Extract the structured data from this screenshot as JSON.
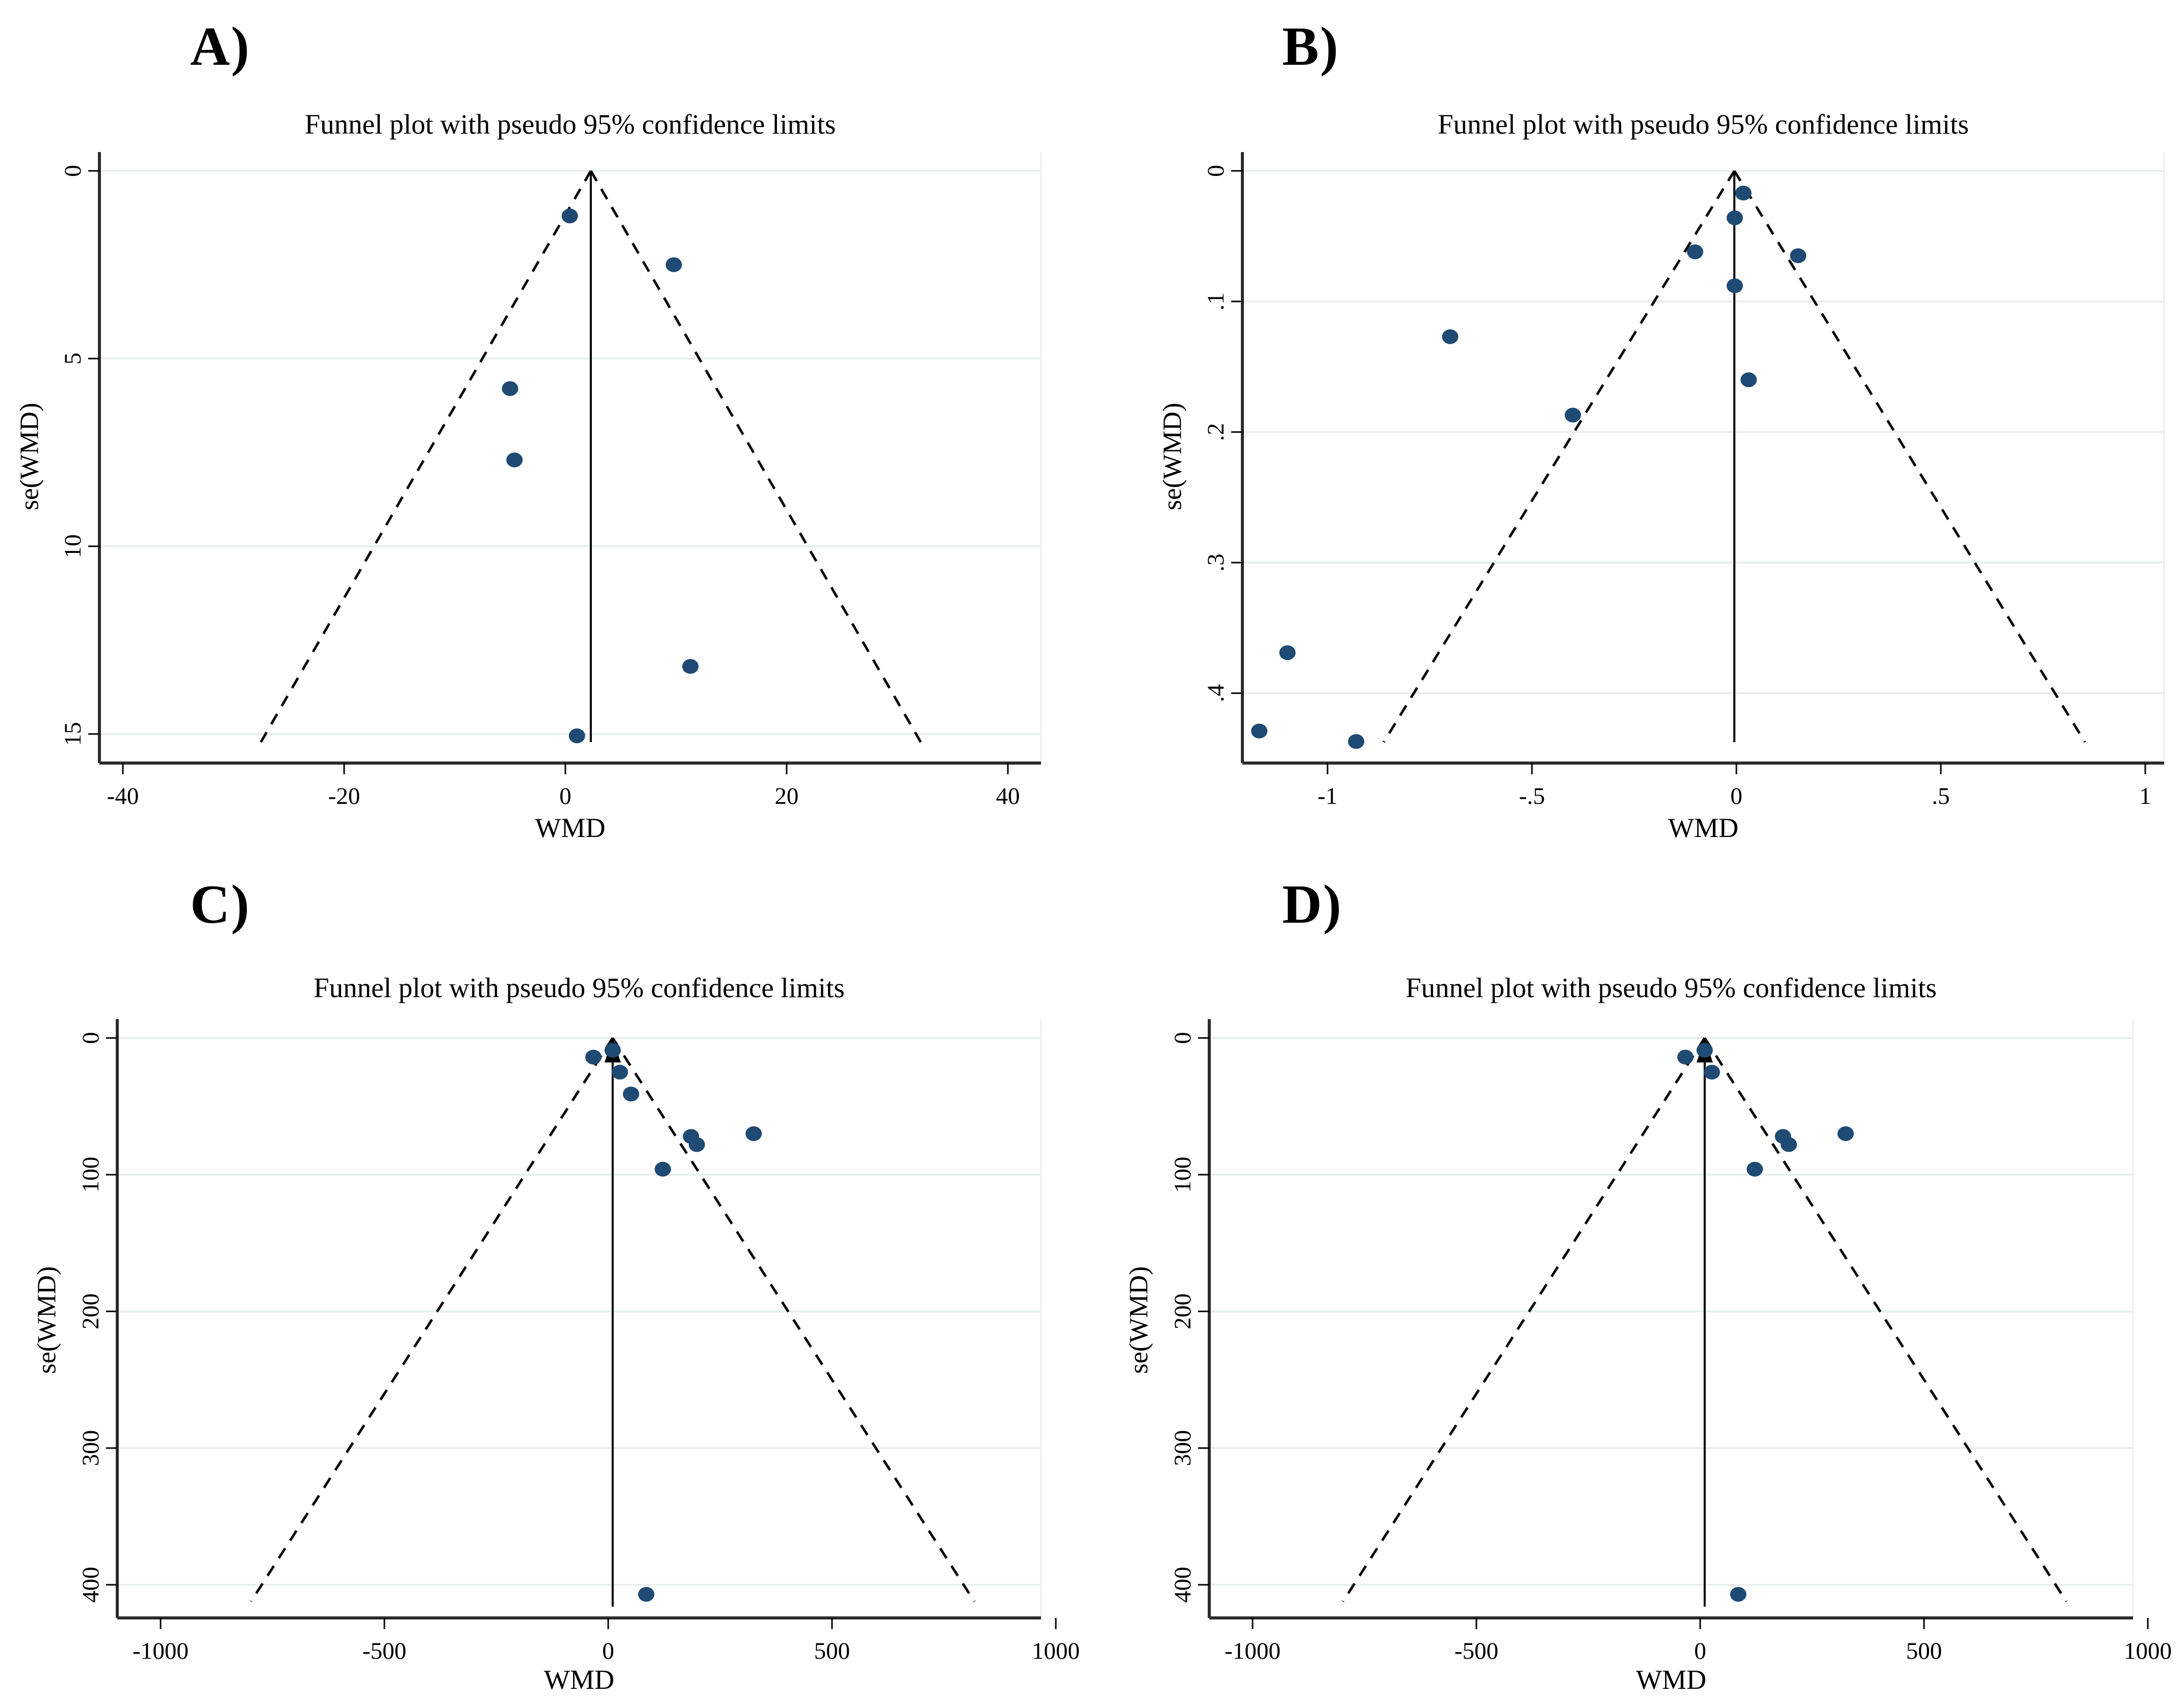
{
  "figure": {
    "background": "#ffffff",
    "description": "Four funnel plots with pseudo 95% confidence limits"
  },
  "colors": {
    "point": "#1e4a73",
    "grid": "#eaeeee",
    "axis": "#2b2b2b",
    "tick": "#000000",
    "funnel_dash": "#0a0a0a",
    "pooled_line": "#000000",
    "plot_edge": "#eeeeee"
  },
  "chart_data": [
    {
      "type": "scatter",
      "letter": "A)",
      "title": "Funnel plot with pseudo 95% confidence limits",
      "xlabel": "WMD",
      "ylabel": "se(WMD)",
      "x_tick_values": [
        -40,
        -20,
        0,
        20,
        40
      ],
      "x_tick_labels": [
        "-40",
        "-20",
        "0",
        "20",
        "40"
      ],
      "y_tick_values": [
        0,
        5,
        10,
        15
      ],
      "y_tick_labels": [
        "0",
        "5",
        "10",
        "15"
      ],
      "xlim": [
        -42,
        43
      ],
      "ylim": [
        0,
        15.8
      ],
      "y_inverted": true,
      "grid": true,
      "pooled_estimate_x": 2.3,
      "funnel_apex_x": 2.3,
      "funnel_ci_multiplier": 1.96,
      "arrow_on_pooled_line": false,
      "points": [
        {
          "wmd": 0.4,
          "se": 1.2
        },
        {
          "wmd": 9.8,
          "se": 2.5
        },
        {
          "wmd": -5.0,
          "se": 5.8
        },
        {
          "wmd": -4.6,
          "se": 7.7
        },
        {
          "wmd": 11.3,
          "se": 13.2
        },
        {
          "wmd": 1.05,
          "se": 15.05
        }
      ]
    },
    {
      "type": "scatter",
      "letter": "B)",
      "title": "Funnel plot with pseudo 95% confidence limits",
      "xlabel": "WMD",
      "ylabel": "se(WMD)",
      "x_tick_values": [
        -1,
        -0.5,
        0,
        0.5,
        1
      ],
      "x_tick_labels": [
        "-1",
        "-.5",
        "0",
        ".5",
        "1"
      ],
      "y_tick_values": [
        0,
        0.1,
        0.2,
        0.3,
        0.4
      ],
      "y_tick_labels": [
        "0",
        ".1",
        ".2",
        ".3",
        ".4"
      ],
      "xlim": [
        -1.21,
        1.05
      ],
      "ylim": [
        0,
        0.455
      ],
      "y_inverted": true,
      "grid": true,
      "pooled_estimate_x": -0.005,
      "funnel_apex_x": -0.005,
      "funnel_ci_multiplier": 1.96,
      "arrow_on_pooled_line": false,
      "points": [
        {
          "wmd": 0.017,
          "se": 0.017
        },
        {
          "wmd": -0.004,
          "se": 0.036
        },
        {
          "wmd": -0.101,
          "se": 0.062
        },
        {
          "wmd": 0.151,
          "se": 0.065
        },
        {
          "wmd": -0.004,
          "se": 0.088
        },
        {
          "wmd": -0.7,
          "se": 0.127
        },
        {
          "wmd": 0.03,
          "se": 0.16
        },
        {
          "wmd": -0.4,
          "se": 0.187
        },
        {
          "wmd": -1.098,
          "se": 0.369
        },
        {
          "wmd": -1.167,
          "se": 0.429
        },
        {
          "wmd": -0.93,
          "se": 0.437
        }
      ]
    },
    {
      "type": "scatter",
      "letter": "C)",
      "title": "Funnel plot with pseudo 95% confidence limits",
      "xlabel": "WMD",
      "ylabel": "se(WMD)",
      "x_tick_values": [
        -1000,
        -500,
        0,
        500,
        1000
      ],
      "x_tick_labels": [
        "-1000",
        "-500",
        "0",
        "500",
        "1000"
      ],
      "y_tick_values": [
        0,
        100,
        200,
        300,
        400
      ],
      "y_tick_labels": [
        "0",
        "100",
        "200",
        "300",
        "400"
      ],
      "xlim": [
        -1100,
        970
      ],
      "ylim": [
        0,
        425
      ],
      "y_inverted": true,
      "grid": true,
      "pooled_estimate_x": 10,
      "funnel_apex_x": 10,
      "funnel_ci_multiplier": 1.96,
      "arrow_on_pooled_line": true,
      "points": [
        {
          "wmd": -33,
          "se": 14
        },
        {
          "wmd": 10,
          "se": 9
        },
        {
          "wmd": 26,
          "se": 25
        },
        {
          "wmd": 51,
          "se": 41
        },
        {
          "wmd": 185,
          "se": 72
        },
        {
          "wmd": 198,
          "se": 78
        },
        {
          "wmd": 325,
          "se": 70
        },
        {
          "wmd": 122,
          "se": 96
        },
        {
          "wmd": 85,
          "se": 407
        }
      ]
    },
    {
      "type": "scatter",
      "letter": "D)",
      "title": "Funnel plot with pseudo 95% confidence limits",
      "xlabel": "WMD",
      "ylabel": "se(WMD)",
      "x_tick_values": [
        -1000,
        -500,
        0,
        500,
        1000
      ],
      "x_tick_labels": [
        "-1000",
        "-500",
        "0",
        "500",
        "1000"
      ],
      "y_tick_values": [
        0,
        100,
        200,
        300,
        400
      ],
      "y_tick_labels": [
        "0",
        "100",
        "200",
        "300",
        "400"
      ],
      "xlim": [
        -1100,
        970
      ],
      "ylim": [
        0,
        425
      ],
      "y_inverted": true,
      "grid": true,
      "pooled_estimate_x": 10,
      "funnel_apex_x": 10,
      "funnel_ci_multiplier": 1.96,
      "arrow_on_pooled_line": true,
      "points": [
        {
          "wmd": -33,
          "se": 14
        },
        {
          "wmd": 10,
          "se": 9
        },
        {
          "wmd": 26,
          "se": 25
        },
        {
          "wmd": 185,
          "se": 72
        },
        {
          "wmd": 198,
          "se": 78
        },
        {
          "wmd": 325,
          "se": 70
        },
        {
          "wmd": 122,
          "se": 96
        },
        {
          "wmd": 85,
          "se": 407
        }
      ]
    }
  ]
}
